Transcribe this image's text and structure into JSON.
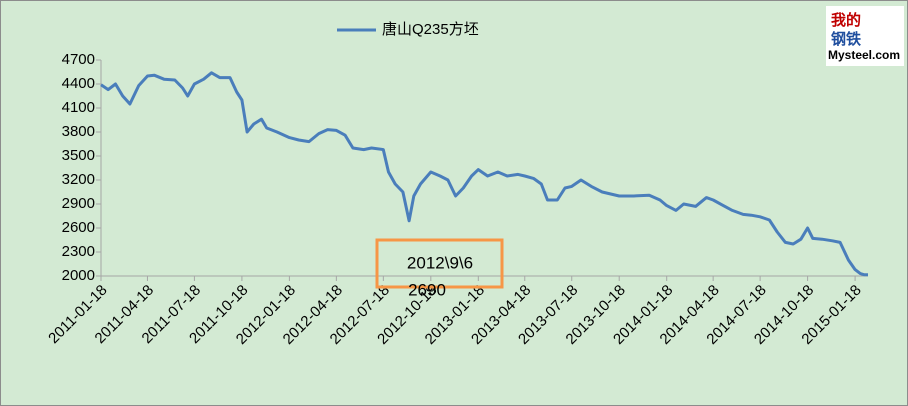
{
  "chart_data": {
    "type": "line",
    "x": [
      "2011-01-18",
      "2011-02-01",
      "2011-02-15",
      "2011-03-01",
      "2011-03-15",
      "2011-04-01",
      "2011-04-18",
      "2011-05-01",
      "2011-05-20",
      "2011-06-10",
      "2011-06-25",
      "2011-07-05",
      "2011-07-18",
      "2011-08-05",
      "2011-08-20",
      "2011-09-05",
      "2011-09-25",
      "2011-10-08",
      "2011-10-18",
      "2011-10-28",
      "2011-11-10",
      "2011-11-25",
      "2011-12-05",
      "2011-12-25",
      "2012-01-18",
      "2012-02-05",
      "2012-02-25",
      "2012-03-15",
      "2012-04-01",
      "2012-04-18",
      "2012-05-05",
      "2012-05-20",
      "2012-06-10",
      "2012-06-25",
      "2012-07-18",
      "2012-07-28",
      "2012-08-10",
      "2012-08-25",
      "2012-09-06",
      "2012-09-15",
      "2012-09-28",
      "2012-10-18",
      "2012-11-05",
      "2012-11-20",
      "2012-12-05",
      "2012-12-20",
      "2013-01-05",
      "2013-01-18",
      "2013-02-05",
      "2013-02-25",
      "2013-03-15",
      "2013-04-05",
      "2013-04-18",
      "2013-05-05",
      "2013-05-20",
      "2013-06-01",
      "2013-06-20",
      "2013-07-05",
      "2013-07-18",
      "2013-08-05",
      "2013-08-25",
      "2013-09-15",
      "2013-10-18",
      "2013-11-15",
      "2013-12-15",
      "2014-01-05",
      "2014-01-18",
      "2014-02-05",
      "2014-02-20",
      "2014-03-15",
      "2014-04-05",
      "2014-04-18",
      "2014-05-05",
      "2014-05-25",
      "2014-06-15",
      "2014-07-01",
      "2014-07-18",
      "2014-08-05",
      "2014-08-20",
      "2014-09-05",
      "2014-09-20",
      "2014-10-05",
      "2014-10-18",
      "2014-10-28",
      "2014-11-15",
      "2014-12-05",
      "2014-12-20",
      "2015-01-05",
      "2015-01-18",
      "2015-01-28",
      "2015-02-05",
      "2015-02-12"
    ],
    "series": [
      {
        "name": "唐山Q235方坯",
        "color": "#4a7ebb",
        "values": [
          4390,
          4330,
          4400,
          4250,
          4150,
          4380,
          4500,
          4510,
          4460,
          4450,
          4350,
          4250,
          4400,
          4460,
          4540,
          4480,
          4480,
          4300,
          4200,
          3800,
          3900,
          3960,
          3850,
          3800,
          3730,
          3700,
          3680,
          3780,
          3830,
          3820,
          3760,
          3600,
          3580,
          3600,
          3580,
          3300,
          3150,
          3050,
          2690,
          3000,
          3150,
          3300,
          3250,
          3200,
          3000,
          3100,
          3250,
          3330,
          3250,
          3300,
          3250,
          3270,
          3250,
          3220,
          3150,
          2950,
          2950,
          3100,
          3120,
          3200,
          3120,
          3050,
          3000,
          3000,
          3010,
          2950,
          2880,
          2820,
          2900,
          2870,
          2980,
          2950,
          2890,
          2820,
          2770,
          2760,
          2740,
          2700,
          2550,
          2420,
          2400,
          2460,
          2600,
          2470,
          2460,
          2440,
          2420,
          2200,
          2080,
          2030,
          2015,
          2015
        ]
      }
    ],
    "xlim": [
      "2011-01-18",
      "2015-02-12"
    ],
    "xticks": [
      "2011-01-18",
      "2011-04-18",
      "2011-07-18",
      "2011-10-18",
      "2012-01-18",
      "2012-04-18",
      "2012-07-18",
      "2012-10-18",
      "2013-01-18",
      "2013-04-18",
      "2013-07-18",
      "2013-10-18",
      "2014-01-18",
      "2014-04-18",
      "2014-07-18",
      "2014-10-18",
      "2015-01-18"
    ],
    "ylim": [
      2000,
      4700
    ],
    "yticks": [
      2000,
      2300,
      2600,
      2900,
      3200,
      3500,
      3800,
      4100,
      4400,
      4700
    ],
    "legend": "top",
    "annotation": {
      "lines": [
        "2012\\9\\6",
        "2690"
      ],
      "color": "#f79646"
    },
    "logo": {
      "lines": [
        "我的",
        "钢铁",
        "Mysteel.com"
      ]
    }
  }
}
